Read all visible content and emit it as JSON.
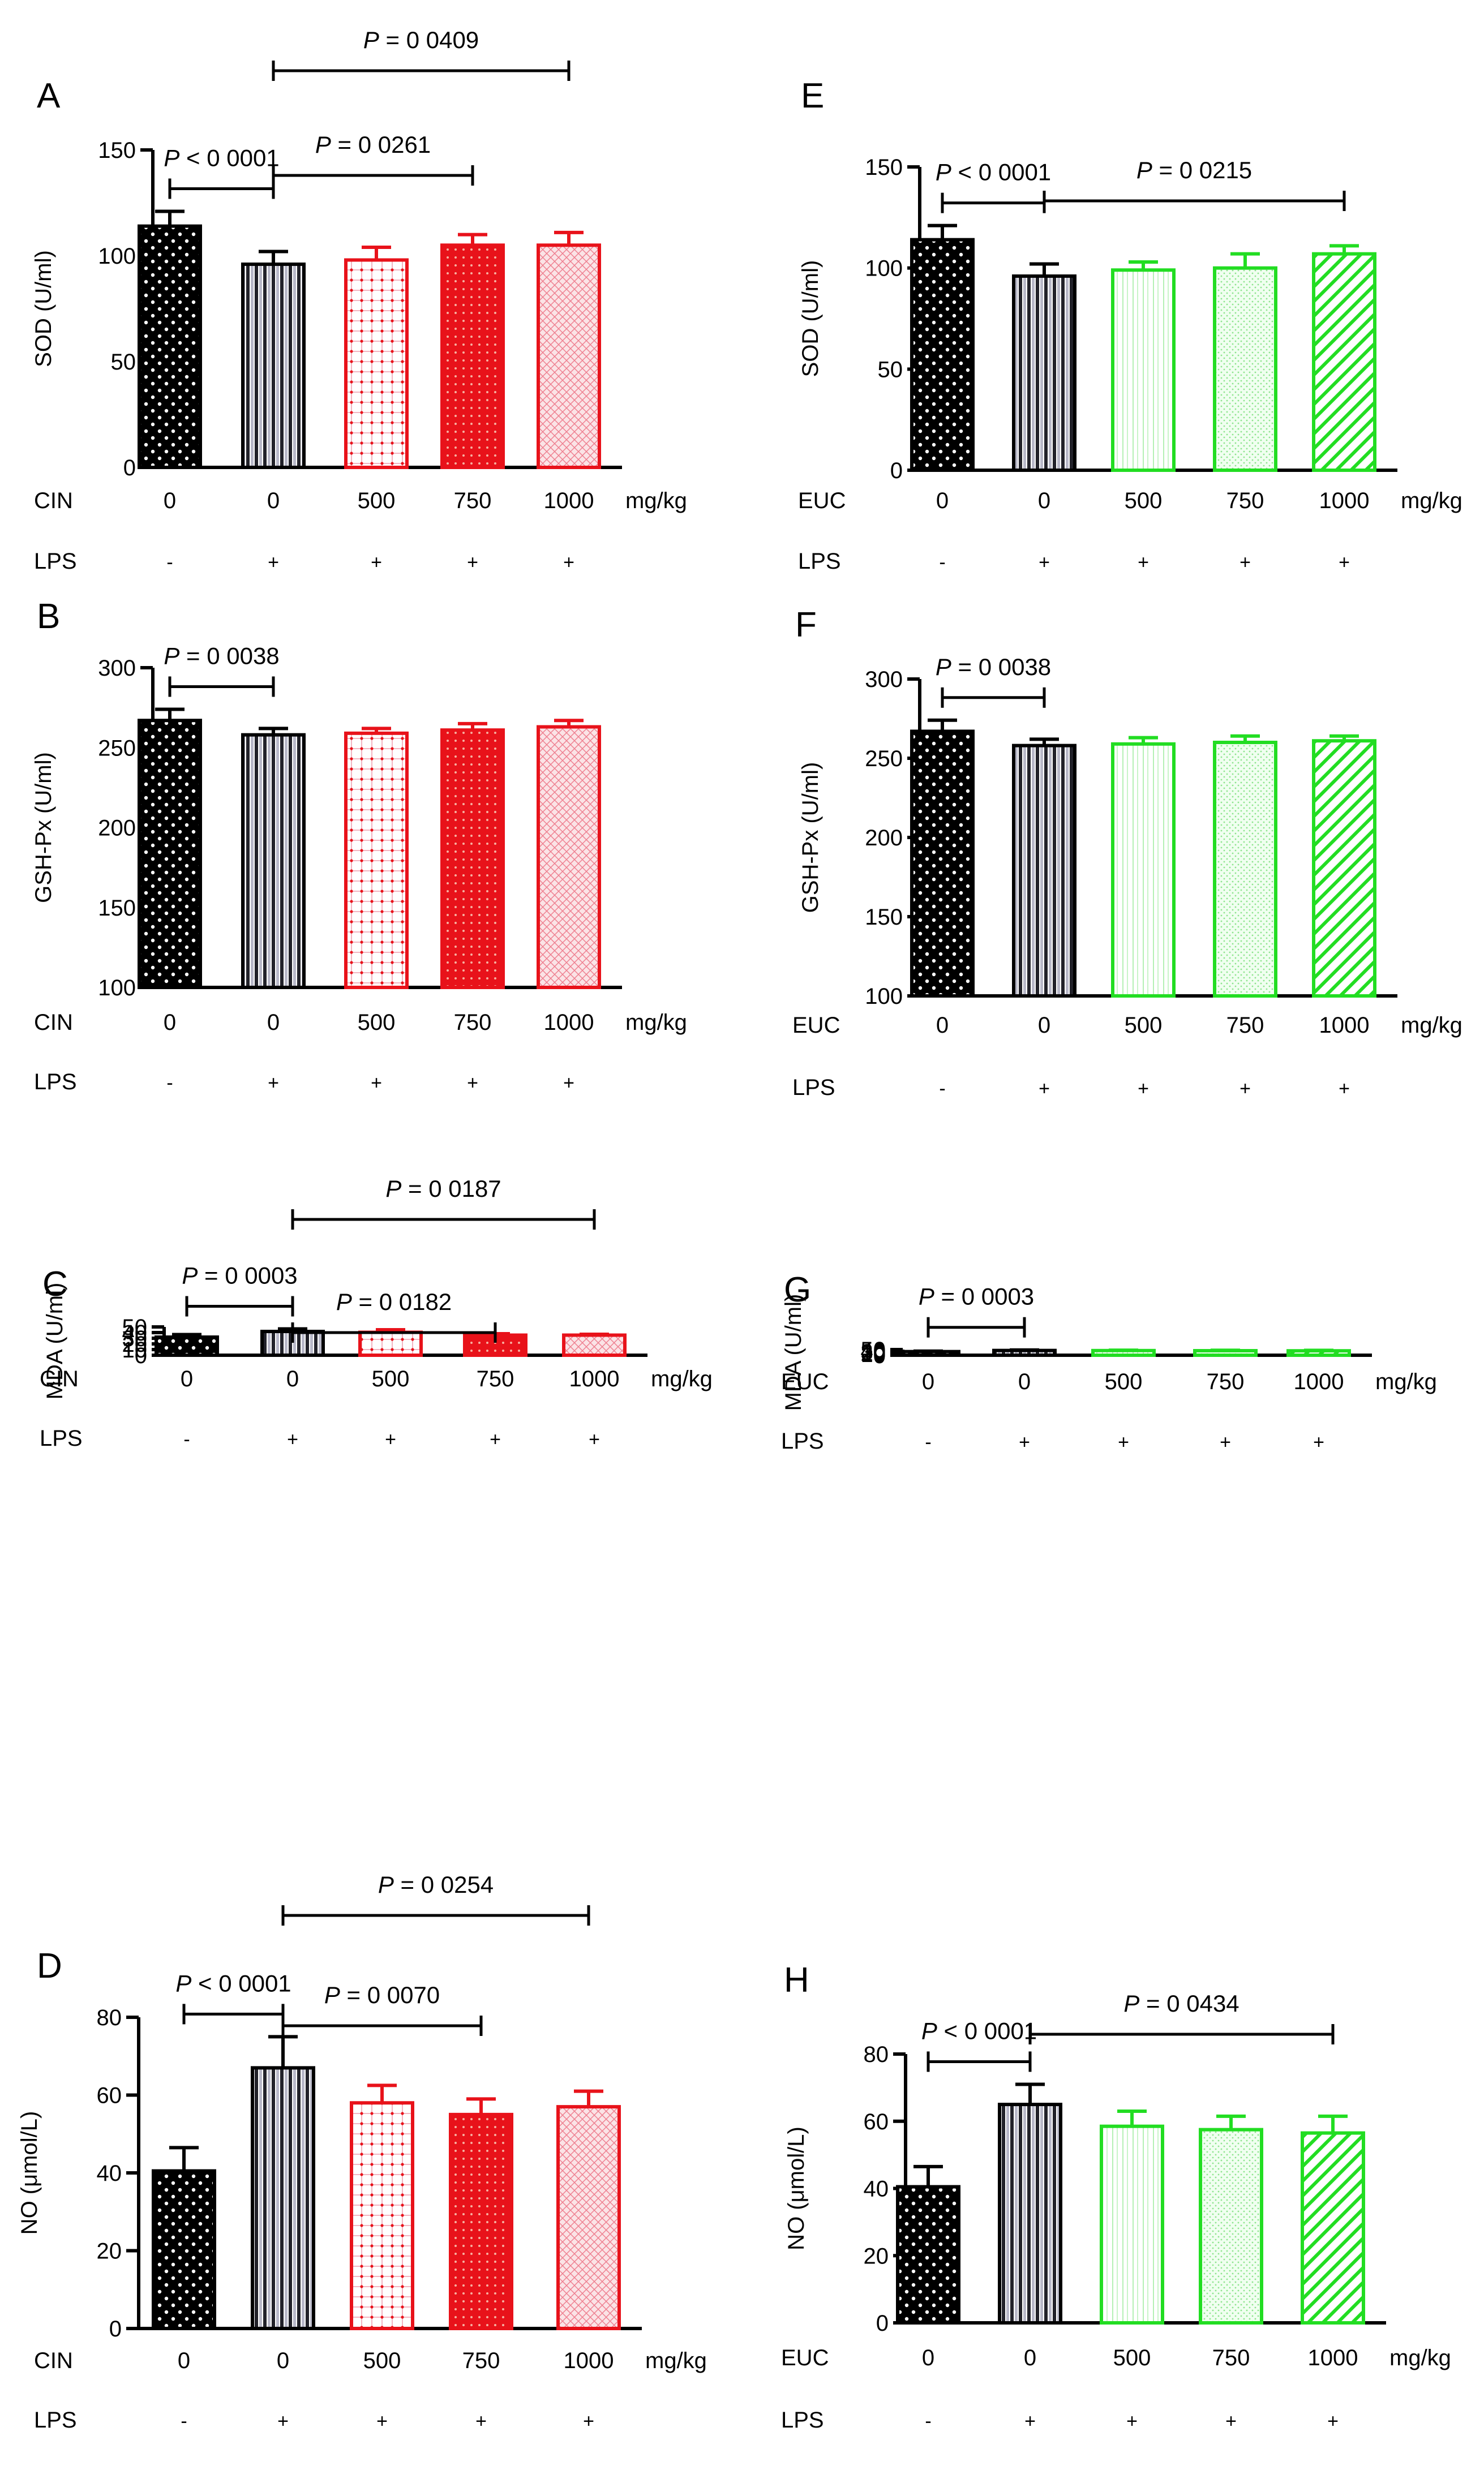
{
  "colors": {
    "black": "#000000",
    "red": "#e8121a",
    "green": "#22dd22",
    "gray": "#b8b8c8",
    "pink": "#f2b5c2",
    "lightgreen": "#b5f0b5"
  },
  "chart_data": [
    {
      "panel": "A",
      "type": "bar",
      "theme": "red",
      "ylabel": "SOD (U/ml)",
      "yticks": [
        0,
        50,
        100,
        150
      ],
      "ylim": [
        0,
        150
      ],
      "treatment_label": "CIN",
      "categories": [
        "0",
        "0",
        "500",
        "750",
        "1000"
      ],
      "unit": "mg/kg",
      "lps_label": "LPS",
      "lps": [
        "-",
        "+",
        "+",
        "+",
        "+"
      ],
      "values": [
        114,
        96,
        98,
        105,
        105
      ],
      "errors": [
        7,
        6,
        6,
        5,
        6
      ],
      "comparisons": [
        {
          "from": 0,
          "to": 1,
          "text": "P < 0 0001",
          "level": 0
        },
        {
          "from": 1,
          "to": 3,
          "text": "P = 0 0261",
          "level": 1
        },
        {
          "from": 1,
          "to": 4,
          "text": "P = 0 0409",
          "level": 2
        }
      ]
    },
    {
      "panel": "B",
      "type": "bar",
      "theme": "red",
      "ylabel": "GSH-Px (U/ml)",
      "yticks": [
        100,
        150,
        200,
        250,
        300
      ],
      "ylim": [
        100,
        300
      ],
      "treatment_label": "CIN",
      "categories": [
        "0",
        "0",
        "500",
        "750",
        "1000"
      ],
      "unit": "mg/kg",
      "lps_label": "LPS",
      "lps": [
        "-",
        "+",
        "+",
        "+",
        "+"
      ],
      "values": [
        267,
        258,
        259,
        261,
        263
      ],
      "errors": [
        7,
        4,
        3,
        4,
        4
      ],
      "comparisons": [
        {
          "from": 0,
          "to": 1,
          "text": "P = 0 0038",
          "level": 0
        }
      ]
    },
    {
      "panel": "C",
      "type": "bar",
      "theme": "red",
      "ylabel": "MDA (U/ml)",
      "yticks": [
        0,
        10,
        20,
        30,
        40,
        50
      ],
      "ylim": [
        0,
        50
      ],
      "treatment_label": "CIN",
      "categories": [
        "0",
        "0",
        "500",
        "750",
        "1000"
      ],
      "unit": "mg/kg",
      "lps_label": "LPS",
      "lps": [
        "-",
        "+",
        "+",
        "+",
        "+"
      ],
      "values": [
        32,
        42,
        40.5,
        35.5,
        35.5
      ],
      "errors": [
        4.5,
        4.5,
        4.5,
        2.5,
        1.5
      ],
      "comparisons": [
        {
          "from": 0,
          "to": 1,
          "text": "P = 0 0003",
          "level": 0
        },
        {
          "from": 1,
          "to": 3,
          "text": "P = 0 0182",
          "level": 1
        },
        {
          "from": 1,
          "to": 4,
          "text": "P = 0 0187",
          "level": 2
        }
      ]
    },
    {
      "panel": "D",
      "type": "bar",
      "theme": "red",
      "ylabel": "NO (μmol/L)",
      "yticks": [
        0,
        20,
        40,
        60,
        80
      ],
      "ylim": [
        0,
        80
      ],
      "treatment_label": "CIN",
      "categories": [
        "0",
        "0",
        "500",
        "750",
        "1000"
      ],
      "unit": "mg/kg",
      "lps_label": "LPS",
      "lps": [
        "-",
        "+",
        "+",
        "+",
        "+"
      ],
      "values": [
        40.5,
        67,
        58,
        55,
        57
      ],
      "errors": [
        6,
        8,
        4.5,
        4,
        4
      ],
      "comparisons": [
        {
          "from": 0,
          "to": 1,
          "text": "P < 0 0001",
          "level": 0
        },
        {
          "from": 1,
          "to": 3,
          "text": "P = 0 0070",
          "level": 1
        },
        {
          "from": 1,
          "to": 4,
          "text": "P = 0 0254",
          "level": 2
        }
      ]
    },
    {
      "panel": "E",
      "type": "bar",
      "theme": "green",
      "ylabel": "SOD (U/ml)",
      "yticks": [
        0,
        50,
        100,
        150
      ],
      "ylim": [
        0,
        150
      ],
      "treatment_label": "EUC",
      "categories": [
        "0",
        "0",
        "500",
        "750",
        "1000"
      ],
      "unit": "mg/kg",
      "lps_label": "LPS",
      "lps": [
        "-",
        "+",
        "+",
        "+",
        "+"
      ],
      "values": [
        114,
        96,
        99,
        100,
        107
      ],
      "errors": [
        7,
        6,
        4,
        7,
        4
      ],
      "comparisons": [
        {
          "from": 0,
          "to": 1,
          "text": "P < 0 0001",
          "level": 0
        },
        {
          "from": 1,
          "to": 4,
          "text": "P = 0 0215",
          "level": 1
        }
      ]
    },
    {
      "panel": "F",
      "type": "bar",
      "theme": "green",
      "ylabel": "GSH-Px (U/ml)",
      "yticks": [
        100,
        150,
        200,
        250,
        300
      ],
      "ylim": [
        100,
        300
      ],
      "treatment_label": "EUC",
      "categories": [
        "0",
        "0",
        "500",
        "750",
        "1000"
      ],
      "unit": "mg/kg",
      "lps_label": "LPS",
      "lps": [
        "-",
        "+",
        "+",
        "+",
        "+"
      ],
      "values": [
        267,
        258,
        259,
        260,
        261
      ],
      "errors": [
        7,
        4,
        4,
        4,
        3
      ],
      "comparisons": [
        {
          "from": 0,
          "to": 1,
          "text": "P = 0 0038",
          "level": 0
        }
      ]
    },
    {
      "panel": "G",
      "type": "bar",
      "theme": "green",
      "ylabel": "MDA (U/ml)",
      "yticks": [
        0,
        10,
        20,
        30,
        40,
        50
      ],
      "ylim": [
        0,
        50
      ],
      "treatment_label": "EUC",
      "categories": [
        "0",
        "0",
        "500",
        "750",
        "1000"
      ],
      "unit": "mg/kg",
      "lps_label": "LPS",
      "lps": [
        "-",
        "+",
        "+",
        "+",
        "+"
      ],
      "values": [
        32,
        42,
        41,
        40,
        39
      ],
      "errors": [
        4.5,
        4.5,
        3.5,
        4,
        4
      ],
      "comparisons": [
        {
          "from": 0,
          "to": 1,
          "text": "P = 0 0003",
          "level": 0
        }
      ]
    },
    {
      "panel": "H",
      "type": "bar",
      "theme": "green",
      "ylabel": "NO (μmol/L)",
      "yticks": [
        0,
        20,
        40,
        60,
        80
      ],
      "ylim": [
        0,
        80
      ],
      "treatment_label": "EUC",
      "categories": [
        "0",
        "0",
        "500",
        "750",
        "1000"
      ],
      "unit": "mg/kg",
      "lps_label": "LPS",
      "lps": [
        "-",
        "+",
        "+",
        "+",
        "+"
      ],
      "values": [
        40.5,
        65,
        58.5,
        57.5,
        56.5
      ],
      "errors": [
        6,
        6,
        4.5,
        4,
        5
      ],
      "comparisons": [
        {
          "from": 0,
          "to": 1,
          "text": "P < 0 0001",
          "level": 0
        },
        {
          "from": 1,
          "to": 4,
          "text": "P = 0 0434",
          "level": 1
        }
      ]
    }
  ]
}
